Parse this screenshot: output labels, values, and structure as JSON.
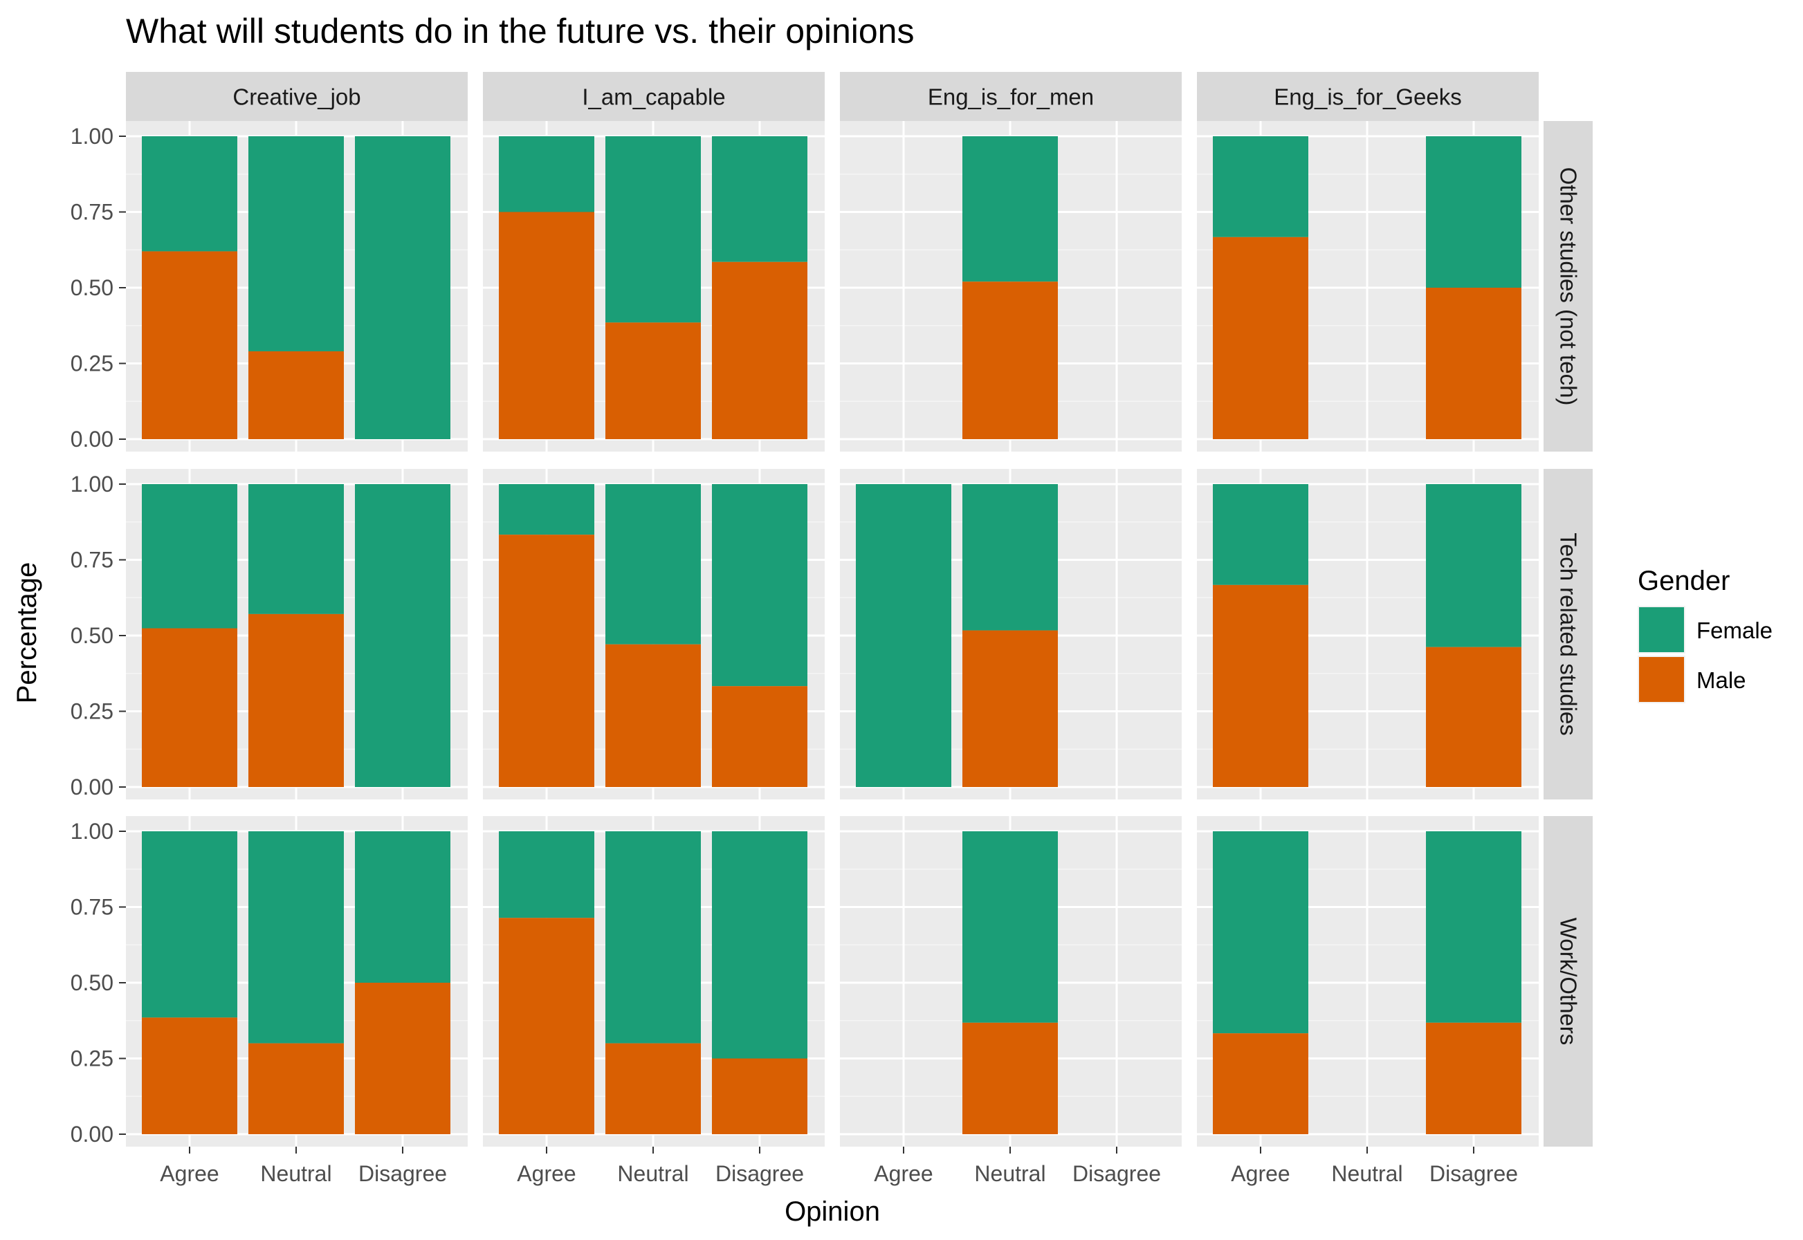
{
  "chart_data": {
    "type": "bar",
    "stacked": true,
    "title": "What will students do in the future vs. their opinions",
    "xlabel": "Opinion",
    "ylabel": "Percentage",
    "ylim": [
      0,
      1
    ],
    "y_ticks": [
      "0.00",
      "0.25",
      "0.50",
      "0.75",
      "1.00"
    ],
    "categories": [
      "Agree",
      "Neutral",
      "Disagree"
    ],
    "facet_columns": [
      "Creative_job",
      "I_am_capable",
      "Eng_is_for_men",
      "Eng_is_for_Geeks"
    ],
    "facet_rows": [
      "Other studies (not tech)",
      "Tech related studies",
      "Work/Others"
    ],
    "legend": {
      "title": "Gender",
      "position": "right",
      "entries": [
        {
          "name": "Female",
          "color": "#1b9e77"
        },
        {
          "name": "Male",
          "color": "#d95f02"
        }
      ]
    },
    "panels": [
      {
        "row": 0,
        "col": 0,
        "male": [
          0.62,
          0.29,
          0.0
        ],
        "present": [
          true,
          true,
          true
        ]
      },
      {
        "row": 0,
        "col": 1,
        "male": [
          0.75,
          0.385,
          0.585
        ],
        "present": [
          true,
          true,
          true
        ]
      },
      {
        "row": 0,
        "col": 2,
        "male": [
          null,
          0.52,
          null
        ],
        "present": [
          false,
          true,
          false
        ]
      },
      {
        "row": 0,
        "col": 3,
        "male": [
          0.667,
          null,
          0.5
        ],
        "present": [
          true,
          false,
          true
        ]
      },
      {
        "row": 1,
        "col": 0,
        "male": [
          0.524,
          0.571,
          0.0
        ],
        "present": [
          true,
          true,
          true
        ]
      },
      {
        "row": 1,
        "col": 1,
        "male": [
          0.833,
          0.471,
          0.333
        ],
        "present": [
          true,
          true,
          true
        ]
      },
      {
        "row": 1,
        "col": 2,
        "male": [
          0.0,
          0.517,
          null
        ],
        "present": [
          true,
          true,
          false
        ]
      },
      {
        "row": 1,
        "col": 3,
        "male": [
          0.667,
          null,
          0.462
        ],
        "present": [
          true,
          false,
          true
        ]
      },
      {
        "row": 2,
        "col": 0,
        "male": [
          0.385,
          0.3,
          0.5
        ],
        "present": [
          true,
          true,
          true
        ]
      },
      {
        "row": 2,
        "col": 1,
        "male": [
          0.714,
          0.3,
          0.25
        ],
        "present": [
          true,
          true,
          true
        ]
      },
      {
        "row": 2,
        "col": 2,
        "male": [
          null,
          0.368,
          null
        ],
        "present": [
          false,
          true,
          false
        ]
      },
      {
        "row": 2,
        "col": 3,
        "male": [
          0.333,
          null,
          0.368
        ],
        "present": [
          true,
          false,
          true
        ]
      }
    ]
  }
}
